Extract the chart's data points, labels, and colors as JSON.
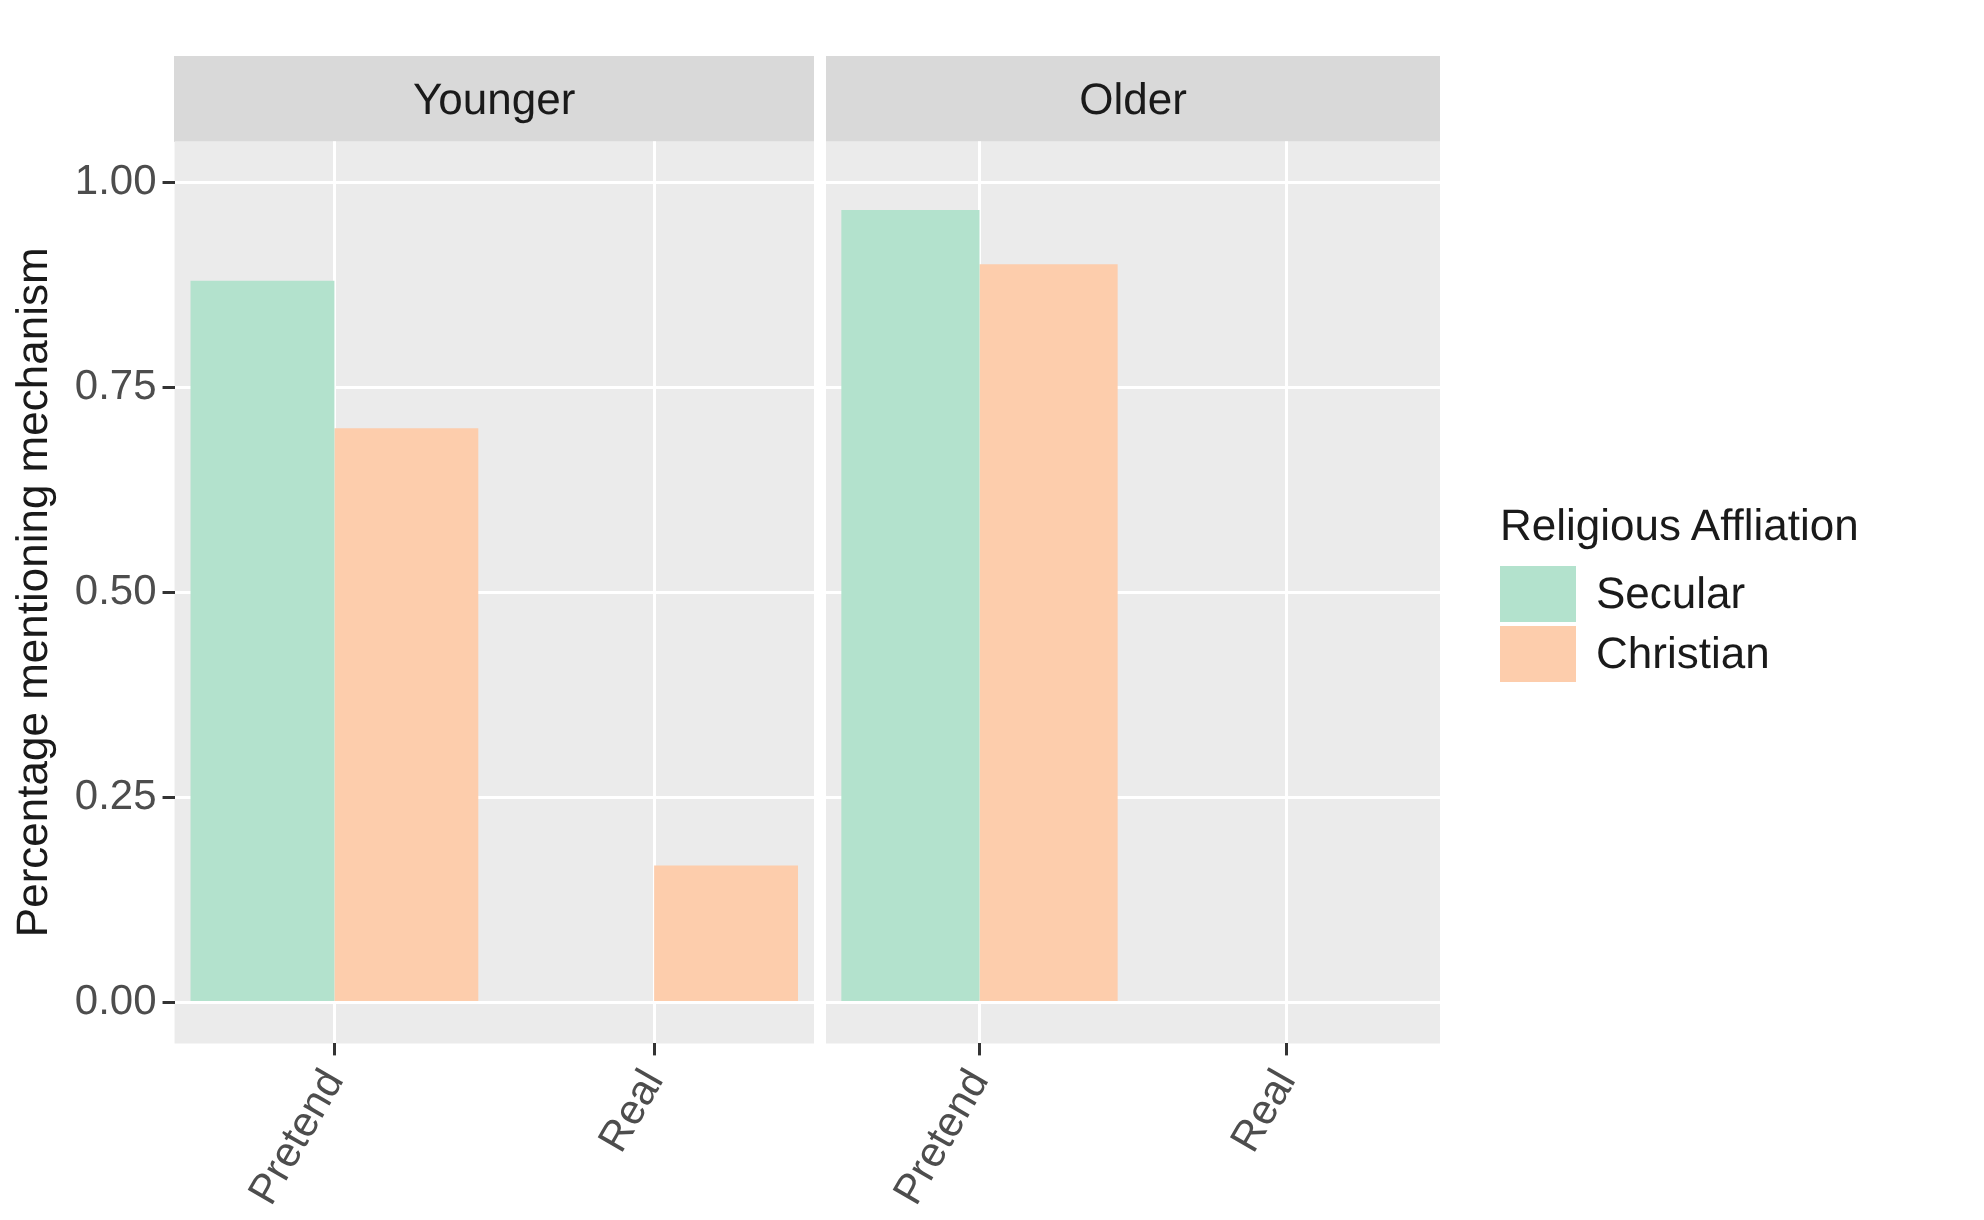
{
  "chart_data": [
    {
      "type": "bar",
      "title": "Younger",
      "ylabel": "Percentage mentioning mechanism",
      "categories": [
        "Pretend",
        "Real"
      ],
      "series": [
        {
          "color": "#b3e2cd",
          "values": [
            0.88,
            null
          ]
        },
        {
          "color": "#fdcdac",
          "values": [
            0.7,
            0.167
          ]
        }
      ],
      "ylim": [
        -0.05,
        1.05
      ],
      "yticks": [
        {
          "value": 0,
          "label": "0.00"
        },
        {
          "value": 0.25,
          "label": "0.25"
        },
        {
          "value": 0.5,
          "label": "0.50"
        },
        {
          "value": 0.75,
          "label": "0.75"
        },
        {
          "value": 1,
          "label": "1.00"
        }
      ],
      "grid": true,
      "legend": false
    },
    {
      "type": "bar",
      "title": "Older",
      "legend_title": "Religious Affliation",
      "categories": [
        "Pretend",
        "Real"
      ],
      "series": [
        {
          "name": "Secular",
          "color": "#b3e2cd",
          "values": [
            0.966,
            null
          ]
        },
        {
          "name": "Christian",
          "color": "#fdcdac",
          "values": [
            0.9,
            null
          ]
        }
      ],
      "ylim": [
        -0.05,
        1.05
      ],
      "yticks": [
        0,
        0.25,
        0.5,
        0.75,
        1
      ],
      "grid": true,
      "legend": "right",
      "tick_labels": "x"
    }
  ]
}
